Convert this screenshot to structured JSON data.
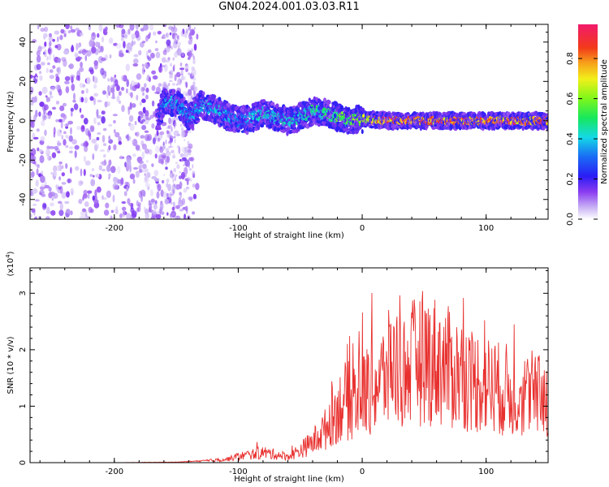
{
  "title": "GN04.2024.001.03.03.R11",
  "chart_data": [
    {
      "type": "heatmap",
      "xlabel": "Height of straight line (km)",
      "ylabel": "Frequency (Hz)",
      "xlim": [
        -268,
        150
      ],
      "ylim": [
        -50,
        49
      ],
      "xticks": [
        -200,
        -100,
        0,
        100
      ],
      "yticks": [
        -40,
        -20,
        0,
        20,
        40
      ],
      "ridge": {
        "x": [
          -268,
          -165,
          -160,
          -150,
          -140,
          -130,
          -120,
          -110,
          -100,
          -90,
          -80,
          -70,
          -60,
          -50,
          -40,
          -30,
          -20,
          -10,
          0,
          20,
          40,
          60,
          80,
          100,
          120,
          150
        ],
        "freq_hz": [
          0,
          0,
          10,
          9,
          2,
          8,
          6,
          3,
          0,
          1,
          4,
          2,
          0,
          2,
          5,
          4,
          2,
          0,
          1,
          0,
          0,
          0,
          0,
          0,
          0,
          0
        ],
        "normalized_amplitude": [
          0.15,
          0.15,
          0.4,
          0.4,
          0.35,
          0.4,
          0.4,
          0.4,
          0.35,
          0.4,
          0.45,
          0.45,
          0.45,
          0.45,
          0.5,
          0.5,
          0.55,
          0.6,
          0.65,
          0.9,
          0.9,
          0.9,
          0.9,
          0.9,
          0.9,
          0.9
        ]
      },
      "colorbar": {
        "label": "Normalized spectral amplitude",
        "range": [
          0,
          0.97
        ],
        "ticks": [
          0.0,
          0.2,
          0.4,
          0.6,
          0.8
        ]
      }
    },
    {
      "type": "line",
      "xlabel": "Height of straight line (km)",
      "ylabel": "SNR (10 * v/v)",
      "y_multiplier": "(x10",
      "y_multiplier_exp": "4",
      "y_multiplier_close": ")",
      "xlim": [
        -268,
        150
      ],
      "ylim": [
        0,
        3.45
      ],
      "xticks": [
        -200,
        -100,
        0,
        100
      ],
      "yticks": [
        0,
        1,
        2,
        3
      ],
      "color": "#e8312f",
      "series": [
        {
          "x": [
            -268,
            -200,
            -150,
            -130,
            -110,
            -100,
            -90,
            -80,
            -70,
            -60,
            -50,
            -40,
            -30,
            -25,
            -20,
            -15,
            -10,
            -5,
            0,
            5,
            10,
            15,
            20,
            25,
            30,
            35,
            40,
            45,
            50,
            55,
            60,
            65,
            70,
            75,
            80,
            85,
            90,
            95,
            100,
            105,
            110,
            115,
            120,
            125,
            130,
            135,
            140,
            145,
            150
          ],
          "values": [
            0.0,
            0.0,
            0.01,
            0.03,
            0.08,
            0.15,
            0.2,
            0.25,
            0.2,
            0.15,
            0.3,
            0.5,
            0.8,
            1.1,
            1.3,
            1.5,
            1.5,
            1.6,
            1.7,
            1.8,
            1.9,
            2.0,
            2.2,
            2.4,
            2.3,
            2.2,
            2.4,
            2.5,
            2.6,
            2.5,
            2.5,
            2.4,
            2.3,
            2.2,
            2.2,
            2.1,
            2.0,
            2.0,
            1.9,
            1.9,
            1.8,
            1.8,
            1.7,
            1.7,
            1.7,
            1.6,
            1.6,
            1.6,
            1.7
          ]
        }
      ]
    }
  ]
}
